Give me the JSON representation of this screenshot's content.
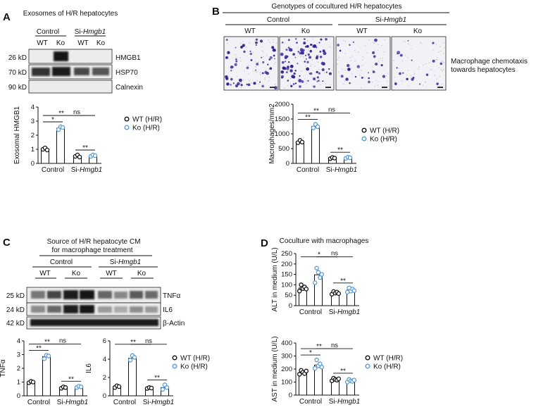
{
  "colors": {
    "wt": "#111111",
    "ko": "#5b9bd5",
    "stain": "#2c1f8a",
    "blot_bg": "#e9e9e9",
    "band": "#161616"
  },
  "legend": {
    "wt": "WT (H/R)",
    "ko": "Ko (H/R)"
  },
  "groups": {
    "control": "Control",
    "si_prefix": "Si-",
    "si_gene": "Hmgb1",
    "wt": "WT",
    "ko": "Ko"
  },
  "sig": {
    "one": "*",
    "two": "**",
    "ns": "ns"
  },
  "panel_a": {
    "label": "A",
    "title": "Exosomes of H/R hepatocytes",
    "blots": [
      {
        "kd": "26 kD",
        "name": "HMGB1"
      },
      {
        "kd": "70 kD",
        "name": "HSP70"
      },
      {
        "kd": "90 kD",
        "name": "Calnexin"
      }
    ]
  },
  "panel_b": {
    "label": "B",
    "title": "Genotypes of cocultured H/R hepatocytes",
    "side_label_1": "Macrophage chemotaxis",
    "side_label_2": "towards hepatocytes"
  },
  "panel_c": {
    "label": "C",
    "title_1": "Source of H/R hepatocyte CM",
    "title_2": "for macrophage treatment",
    "blots": [
      {
        "kd": "25 kD",
        "name": "TNFα"
      },
      {
        "kd": "24 kD",
        "name": "IL6"
      },
      {
        "kd": "42 kD",
        "name": "β-Actin"
      }
    ]
  },
  "panel_d": {
    "label": "D",
    "title": "Coculture with macrophages"
  },
  "chart_data": [
    {
      "id": "a",
      "type": "bar",
      "ylabel": "Exosomal HMGB1",
      "ylim": [
        0,
        4
      ],
      "yticks": [
        0,
        1,
        2,
        3,
        4
      ],
      "ytick_labels": [
        "0",
        "1",
        "2",
        "3",
        "4"
      ],
      "categories": [
        "Control",
        "Si-Hmgb1"
      ],
      "series": [
        {
          "name": "WT (H/R)",
          "values": [
            1.0,
            0.5
          ],
          "points": [
            [
              1.0,
              1.1,
              0.95
            ],
            [
              0.5,
              0.6,
              0.45
            ]
          ]
        },
        {
          "name": "Ko (H/R)",
          "values": [
            2.5,
            0.55
          ],
          "points": [
            [
              2.4,
              2.6,
              2.55
            ],
            [
              0.5,
              0.6,
              0.55
            ]
          ]
        }
      ],
      "annotations": [
        {
          "from": [
            0,
            0
          ],
          "to": [
            0,
            1
          ],
          "label": "**"
        },
        {
          "from": [
            0,
            0
          ],
          "to": [
            1,
            0
          ],
          "label": "*"
        },
        {
          "from": [
            0,
            1
          ],
          "to": [
            1,
            1
          ],
          "label": "**"
        },
        {
          "from": [
            1,
            0
          ],
          "to": [
            1,
            1
          ],
          "label": "ns"
        }
      ]
    },
    {
      "id": "b",
      "type": "bar",
      "ylabel": "Macrophages/mm2",
      "ylim": [
        0,
        2000
      ],
      "yticks": [
        0,
        500,
        1000,
        1500,
        2000
      ],
      "ytick_labels": [
        "0",
        "500",
        "1000",
        "1500",
        "2000"
      ],
      "categories": [
        "Control",
        "Si-Hmgb1"
      ],
      "series": [
        {
          "name": "WT (H/R)",
          "values": [
            730,
            180
          ],
          "points": [
            [
              700,
              780,
              720
            ],
            [
              160,
              200,
              180
            ]
          ]
        },
        {
          "name": "Ko (H/R)",
          "values": [
            1250,
            190
          ],
          "points": [
            [
              1200,
              1320,
              1240
            ],
            [
              170,
              210,
              190
            ]
          ]
        }
      ],
      "annotations": [
        {
          "from": [
            0,
            0
          ],
          "to": [
            0,
            1
          ],
          "label": "**"
        },
        {
          "from": [
            0,
            0
          ],
          "to": [
            1,
            0
          ],
          "label": "**"
        },
        {
          "from": [
            0,
            1
          ],
          "to": [
            1,
            1
          ],
          "label": "**"
        },
        {
          "from": [
            1,
            0
          ],
          "to": [
            1,
            1
          ],
          "label": "ns"
        }
      ]
    },
    {
      "id": "c_tnf",
      "type": "bar",
      "ylabel": "TNFα",
      "ylim": [
        0,
        4
      ],
      "yticks": [
        0,
        1,
        2,
        3,
        4
      ],
      "ytick_labels": [
        "0",
        "1",
        "2",
        "3",
        "4"
      ],
      "categories": [
        "Control",
        "Si-Hmgb1"
      ],
      "series": [
        {
          "name": "WT (H/R)",
          "values": [
            1.0,
            0.6
          ],
          "points": [
            [
              0.95,
              1.05,
              1.0
            ],
            [
              0.55,
              0.65,
              0.6
            ]
          ]
        },
        {
          "name": "Ko (H/R)",
          "values": [
            2.85,
            0.65
          ],
          "points": [
            [
              2.7,
              2.95,
              2.9
            ],
            [
              0.6,
              0.7,
              0.65
            ]
          ]
        }
      ],
      "annotations": [
        {
          "from": [
            0,
            0
          ],
          "to": [
            0,
            1
          ],
          "label": "**"
        },
        {
          "from": [
            0,
            0
          ],
          "to": [
            1,
            0
          ],
          "label": "**"
        },
        {
          "from": [
            0,
            1
          ],
          "to": [
            1,
            1
          ],
          "label": "**"
        },
        {
          "from": [
            1,
            0
          ],
          "to": [
            1,
            1
          ],
          "label": "ns"
        }
      ]
    },
    {
      "id": "c_il6",
      "type": "bar",
      "ylabel": "IL6",
      "ylim": [
        0,
        6
      ],
      "yticks": [
        0,
        2,
        4,
        6
      ],
      "ytick_labels": [
        "0",
        "2",
        "4",
        "6"
      ],
      "categories": [
        "Control",
        "Si-Hmgb1"
      ],
      "series": [
        {
          "name": "WT (H/R)",
          "values": [
            1.0,
            0.85
          ],
          "points": [
            [
              0.9,
              1.1,
              1.0
            ],
            [
              0.8,
              0.9,
              0.85
            ]
          ]
        },
        {
          "name": "Ko (H/R)",
          "values": [
            4.1,
            0.9
          ],
          "points": [
            [
              3.9,
              4.4,
              4.2
            ],
            [
              0.7,
              1.2,
              0.9
            ]
          ]
        }
      ],
      "annotations": [
        {
          "from": [
            0,
            0
          ],
          "to": [
            0,
            1
          ],
          "label": "**"
        },
        {
          "from": [
            0,
            1
          ],
          "to": [
            1,
            1
          ],
          "label": "**"
        },
        {
          "from": [
            1,
            0
          ],
          "to": [
            1,
            1
          ],
          "label": "ns"
        }
      ]
    },
    {
      "id": "d_alt",
      "type": "bar",
      "ylabel": "ALT in medium (U/L)",
      "ylim": [
        0,
        250
      ],
      "yticks": [
        0,
        50,
        100,
        150,
        200,
        250
      ],
      "ytick_labels": [
        "0",
        "50",
        "100",
        "150",
        "200",
        "250"
      ],
      "categories": [
        "Control",
        "Si-Hmgb1"
      ],
      "series": [
        {
          "name": "WT (H/R)",
          "values": [
            85,
            62
          ],
          "points": [
            [
              70,
              100,
              82,
              90,
              80
            ],
            [
              55,
              68,
              60,
              65,
              58
            ]
          ]
        },
        {
          "name": "Ko (H/R)",
          "values": [
            148,
            75
          ],
          "points": [
            [
              110,
              180,
              160,
              135,
              150
            ],
            [
              65,
              85,
              70,
              80,
              72
            ]
          ]
        }
      ],
      "annotations": [
        {
          "from": [
            0,
            0
          ],
          "to": [
            0,
            1
          ],
          "label": "*"
        },
        {
          "from": [
            0,
            1
          ],
          "to": [
            1,
            1
          ],
          "label": "**"
        },
        {
          "from": [
            1,
            0
          ],
          "to": [
            1,
            1
          ],
          "label": "ns"
        }
      ]
    },
    {
      "id": "d_ast",
      "type": "bar",
      "ylabel": "AST in medium (U/L)",
      "ylim": [
        0,
        400
      ],
      "yticks": [
        0,
        100,
        200,
        300,
        400
      ],
      "ytick_labels": [
        "0",
        "100",
        "200",
        "300",
        "400"
      ],
      "categories": [
        "Control",
        "Si-Hmgb1"
      ],
      "series": [
        {
          "name": "WT (H/R)",
          "values": [
            175,
            120
          ],
          "points": [
            [
              160,
              190,
              175,
              165,
              185
            ],
            [
              110,
              130,
              120,
              115,
              125
            ]
          ]
        },
        {
          "name": "Ko (H/R)",
          "values": [
            230,
            110
          ],
          "points": [
            [
              205,
              270,
              225,
              240,
              215
            ],
            [
              100,
              120,
              110,
              105,
              115
            ]
          ]
        }
      ],
      "annotations": [
        {
          "from": [
            0,
            0
          ],
          "to": [
            0,
            1
          ],
          "label": "**"
        },
        {
          "from": [
            0,
            0
          ],
          "to": [
            1,
            0
          ],
          "label": "*"
        },
        {
          "from": [
            0,
            1
          ],
          "to": [
            1,
            1
          ],
          "label": "**"
        },
        {
          "from": [
            1,
            0
          ],
          "to": [
            1,
            1
          ],
          "label": "ns"
        }
      ]
    }
  ]
}
